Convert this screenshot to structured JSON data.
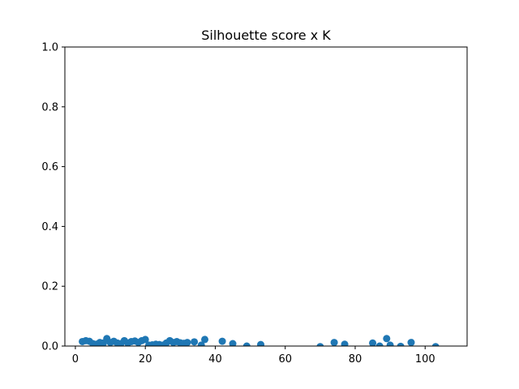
{
  "chart_data": {
    "type": "scatter",
    "title": "Silhouette score x K",
    "xlabel": "",
    "ylabel": "",
    "xlim": [
      -3,
      112
    ],
    "ylim": [
      0,
      1.0
    ],
    "grid": false,
    "x_ticks": [
      0,
      20,
      40,
      60,
      80,
      100
    ],
    "x_tick_labels": [
      "0",
      "20",
      "40",
      "60",
      "80",
      "100"
    ],
    "y_ticks": [
      0.0,
      0.2,
      0.4,
      0.6,
      0.8,
      1.0
    ],
    "y_tick_labels": [
      "0.0",
      "0.2",
      "0.4",
      "0.6",
      "0.8",
      "1.0"
    ],
    "marker_color": "#1f77b4",
    "x": [
      2,
      3,
      4,
      5,
      6,
      7,
      8,
      9,
      10,
      11,
      12,
      13,
      14,
      15,
      16,
      17,
      18,
      19,
      20,
      21,
      22,
      23,
      24,
      25,
      26,
      27,
      28,
      29,
      30,
      31,
      32,
      34,
      36,
      37,
      42,
      45,
      49,
      53,
      70,
      74,
      77,
      85,
      87,
      89,
      90,
      93,
      96,
      103
    ],
    "y": [
      0.015,
      0.018,
      0.016,
      0.008,
      0.006,
      0.012,
      0.01,
      0.025,
      0.012,
      0.016,
      0.01,
      0.008,
      0.018,
      0.01,
      0.015,
      0.017,
      0.012,
      0.018,
      0.022,
      0.003,
      0.004,
      0.006,
      0.005,
      0.003,
      0.01,
      0.018,
      0.012,
      0.015,
      0.011,
      0.009,
      0.012,
      0.014,
      0.003,
      0.022,
      0.016,
      0.008,
      0.0,
      0.005,
      -0.002,
      0.012,
      0.006,
      0.01,
      0.0,
      0.025,
      0.003,
      -0.001,
      0.012,
      -0.002
    ]
  }
}
